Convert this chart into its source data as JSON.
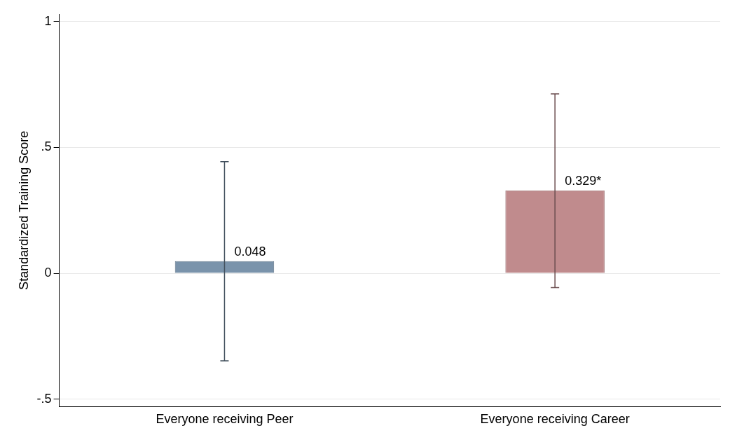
{
  "chart_data": {
    "type": "bar",
    "ylabel": "Standardized Training Score",
    "categories": [
      "Everyone receiving Peer",
      "Everyone receiving Career"
    ],
    "values": [
      0.048,
      0.329
    ],
    "colors": [
      "#7a93ab",
      "#c08b8d"
    ],
    "errors": [
      [
        -0.348,
        0.443
      ],
      [
        -0.057,
        0.713
      ]
    ],
    "value_labels": [
      "0.048",
      "0.329*"
    ],
    "ylim": [
      -0.53,
      1.03
    ],
    "yticks": [
      {
        "value": -0.5,
        "label": "-.5"
      },
      0,
      {
        "value": 0.5,
        "label": ".5"
      },
      1
    ],
    "grid": "y",
    "legend": false
  }
}
